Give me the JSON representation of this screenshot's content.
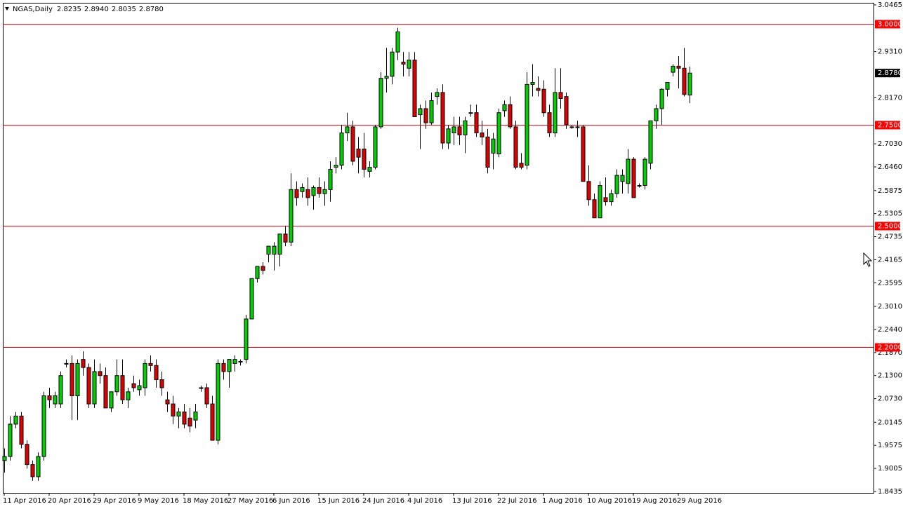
{
  "chart_data": {
    "type": "candlestick",
    "title": "NGAS,Daily",
    "ohlc_labels": [
      "2.8235",
      "2.8940",
      "2.8035",
      "2.8780"
    ],
    "categories": [
      "11 Apr 2016",
      null,
      null,
      null,
      null,
      null,
      null,
      null,
      "20 Apr 2016",
      null,
      null,
      null,
      null,
      null,
      null,
      null,
      "29 Apr 2016",
      null,
      null,
      null,
      null,
      null,
      null,
      null,
      "9 May 2016",
      null,
      null,
      null,
      null,
      null,
      null,
      null,
      "18 May 2016",
      null,
      null,
      null,
      null,
      null,
      null,
      null,
      "27 May 2016",
      null,
      null,
      null,
      null,
      null,
      null,
      null,
      "6 Jun 2016",
      null,
      null,
      null,
      null,
      null,
      null,
      null,
      "15 Jun 2016",
      null,
      null,
      null,
      null,
      null,
      null,
      null,
      "24 Jun 2016",
      null,
      null,
      null,
      null,
      null,
      null,
      null,
      "4 Jul 2016",
      null,
      null,
      null,
      null,
      null,
      null,
      null,
      "13 Jul 2016",
      null,
      null,
      null,
      null,
      null,
      null,
      null,
      "22 Jul 2016",
      null,
      null,
      null,
      null,
      null,
      null,
      null,
      "1 Aug 2016",
      null,
      null,
      null,
      null,
      null,
      null,
      null,
      "10 Aug 2016",
      null,
      null,
      null,
      null,
      null,
      null,
      null,
      "19 Aug 2016",
      null,
      null,
      null,
      null,
      null,
      null,
      null,
      "29 Aug 2016",
      null,
      null
    ],
    "open": [
      1.92,
      1.93,
      2.01,
      2.03,
      1.96,
      1.91,
      1.88,
      1.93,
      2.08,
      2.06,
      2.06,
      2.16,
      2.16,
      2.08,
      2.17,
      2.15,
      2.06,
      2.14,
      2.13,
      2.05,
      2.09,
      2.13,
      2.07,
      2.11,
      2.095,
      2.1,
      2.16,
      2.155,
      2.12,
      2.07,
      2.06,
      2.03,
      2.04,
      2.025,
      2.02,
      2.1,
      2.1,
      2.06,
      1.97,
      2.16,
      2.14,
      2.16,
      2.165,
      2.17,
      2.27,
      2.37,
      2.4,
      2.43,
      2.43,
      2.43,
      2.48,
      2.46,
      2.59,
      2.585,
      2.59,
      2.575,
      2.595,
      2.58,
      2.59,
      2.645,
      2.65,
      2.73,
      2.745,
      2.69,
      2.69,
      2.635,
      2.645,
      2.745,
      2.865,
      2.87,
      2.93,
      2.905,
      2.89,
      2.91,
      2.775,
      2.79,
      2.755,
      2.82,
      2.83,
      2.705,
      2.73,
      2.745,
      2.725,
      2.78,
      2.78,
      2.73,
      2.72,
      2.68,
      2.678,
      2.785,
      2.8,
      2.745,
      2.655,
      2.65,
      2.85,
      2.84,
      2.838,
      2.78,
      2.73,
      2.83,
      2.82,
      2.745,
      2.745,
      2.745,
      2.61,
      2.565,
      2.52,
      2.57,
      2.56,
      2.58,
      2.61,
      2.605,
      2.665,
      2.6,
      2.6,
      2.655,
      2.76,
      2.79,
      2.838,
      2.88,
      2.895,
      2.89,
      2.8235
    ],
    "high": [
      1.95,
      2.03,
      2.04,
      2.04,
      1.97,
      1.92,
      1.94,
      2.09,
      2.1,
      2.09,
      2.14,
      2.17,
      2.18,
      2.17,
      2.19,
      2.16,
      2.17,
      2.16,
      2.15,
      2.09,
      2.17,
      2.17,
      2.1,
      2.13,
      2.12,
      2.17,
      2.18,
      2.17,
      2.14,
      2.09,
      2.08,
      2.05,
      2.06,
      2.05,
      2.06,
      2.105,
      2.11,
      2.08,
      2.17,
      2.17,
      2.17,
      2.18,
      2.17,
      2.28,
      2.37,
      2.4,
      2.41,
      2.45,
      2.46,
      2.48,
      2.5,
      2.63,
      2.61,
      2.605,
      2.62,
      2.6,
      2.62,
      2.61,
      2.66,
      2.67,
      2.75,
      2.78,
      2.76,
      2.72,
      2.73,
      2.66,
      2.75,
      2.88,
      2.94,
      2.94,
      2.99,
      2.93,
      2.93,
      2.93,
      2.8,
      2.81,
      2.83,
      2.84,
      2.85,
      2.75,
      2.77,
      2.77,
      2.77,
      2.8,
      2.8,
      2.76,
      2.74,
      2.73,
      2.79,
      2.81,
      2.82,
      2.76,
      2.68,
      2.88,
      2.9,
      2.87,
      2.86,
      2.8,
      2.89,
      2.89,
      2.83,
      2.75,
      2.76,
      2.75,
      2.65,
      2.58,
      2.61,
      2.62,
      2.59,
      2.64,
      2.64,
      2.69,
      2.67,
      2.605,
      2.67,
      2.76,
      2.8,
      2.84,
      2.85,
      2.9,
      2.92,
      2.94,
      2.894
    ],
    "low": [
      1.89,
      1.92,
      2.0,
      1.95,
      1.9,
      1.87,
      1.87,
      1.92,
      2.05,
      2.05,
      2.05,
      2.15,
      2.02,
      2.02,
      2.13,
      2.05,
      2.05,
      2.11,
      2.05,
      2.04,
      2.08,
      2.06,
      2.05,
      2.09,
      2.08,
      2.08,
      2.14,
      2.1,
      2.08,
      2.04,
      2.01,
      2.0,
      2.0,
      1.99,
      2.0,
      2.09,
      2.05,
      1.97,
      1.96,
      2.12,
      2.1,
      2.14,
      2.155,
      2.16,
      2.27,
      2.36,
      2.38,
      2.41,
      2.39,
      2.4,
      2.45,
      2.45,
      2.55,
      2.57,
      2.55,
      2.54,
      2.57,
      2.55,
      2.56,
      2.63,
      2.64,
      2.71,
      2.65,
      2.63,
      2.62,
      2.62,
      2.64,
      2.74,
      2.83,
      2.85,
      2.91,
      2.87,
      2.87,
      2.78,
      2.69,
      2.74,
      2.75,
      2.8,
      2.69,
      2.69,
      2.7,
      2.7,
      2.68,
      2.77,
      2.72,
      2.7,
      2.63,
      2.64,
      2.67,
      2.77,
      2.74,
      2.64,
      2.64,
      2.64,
      2.82,
      2.82,
      2.77,
      2.72,
      2.72,
      2.79,
      2.74,
      2.74,
      2.72,
      2.61,
      2.55,
      2.52,
      2.52,
      2.55,
      2.55,
      2.57,
      2.58,
      2.58,
      2.57,
      2.595,
      2.59,
      2.64,
      2.74,
      2.75,
      2.82,
      2.87,
      2.84,
      2.82,
      2.8035
    ],
    "close": [
      1.93,
      2.01,
      2.03,
      1.96,
      1.91,
      1.88,
      1.93,
      2.08,
      2.07,
      2.08,
      2.13,
      2.16,
      2.08,
      2.16,
      2.15,
      2.06,
      2.14,
      2.13,
      2.05,
      2.09,
      2.13,
      2.07,
      2.09,
      2.1,
      2.105,
      2.16,
      2.155,
      2.12,
      2.1,
      2.06,
      2.03,
      2.04,
      2.01,
      2.005,
      2.04,
      2.1,
      2.06,
      1.97,
      2.16,
      2.14,
      2.17,
      2.17,
      2.165,
      2.27,
      2.37,
      2.4,
      2.39,
      2.45,
      2.45,
      2.48,
      2.46,
      2.59,
      2.57,
      2.595,
      2.57,
      2.595,
      2.58,
      2.59,
      2.64,
      2.65,
      2.73,
      2.745,
      2.66,
      2.67,
      2.64,
      2.645,
      2.745,
      2.865,
      2.87,
      2.93,
      2.98,
      2.9,
      2.91,
      2.77,
      2.79,
      2.755,
      2.81,
      2.83,
      2.705,
      2.74,
      2.745,
      2.725,
      2.76,
      2.78,
      2.73,
      2.72,
      2.645,
      2.715,
      2.78,
      2.8,
      2.745,
      2.645,
      2.645,
      2.85,
      2.855,
      2.835,
      2.78,
      2.73,
      2.83,
      2.815,
      2.75,
      2.745,
      2.745,
      2.61,
      2.565,
      2.52,
      2.6,
      2.56,
      2.58,
      2.625,
      2.625,
      2.665,
      2.57,
      2.6,
      2.665,
      2.76,
      2.79,
      2.838,
      2.855,
      2.895,
      2.89,
      2.825,
      2.878
    ],
    "up_color": "#00d000",
    "down_color": "#e00000",
    "ylim": [
      1.84,
      3.0517
    ],
    "yticks": [
      3.0465,
      {
        "value": 2.931,
        "label": "2.9310"
      },
      {
        "value": 2.817,
        "label": "2.8170"
      },
      {
        "value": 2.703,
        "label": "2.7030"
      },
      {
        "value": 2.646,
        "label": "2.6460"
      },
      2.5875,
      2.5305,
      2.4735,
      2.4165,
      2.3595,
      {
        "value": 2.301,
        "label": "2.3010"
      },
      {
        "value": 2.244,
        "label": "2.2440"
      },
      {
        "value": 2.187,
        "label": "2.1870"
      },
      {
        "value": 2.13,
        "label": "2.1300"
      },
      {
        "value": 2.073,
        "label": "2.0730"
      },
      2.0145,
      1.9575,
      1.9005,
      1.8435
    ],
    "levels": [
      {
        "value": 3.0,
        "label": "3.0000"
      },
      {
        "value": 2.75,
        "label": "2.7500"
      },
      {
        "value": 2.5,
        "label": "2.5000"
      },
      {
        "value": 2.2,
        "label": "2.2000"
      }
    ],
    "level_color": "#ff0000",
    "current_price": {
      "value": 2.878,
      "label": "2.8780"
    }
  }
}
